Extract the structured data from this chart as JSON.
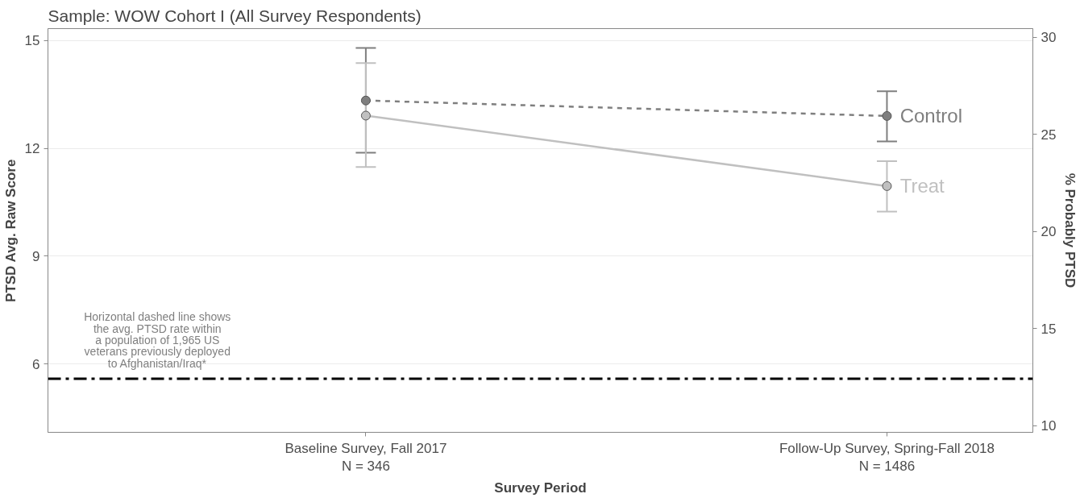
{
  "chart_data": {
    "type": "line",
    "title": "Sample: WOW Cohort I (All Survey Respondents)",
    "xlabel": "Survey Period",
    "ylabel": "PTSD Avg. Raw Score",
    "y2label": "% Probably PTSD",
    "categories": [
      "Baseline Survey, Fall 2017\nN = 346",
      "Follow-Up Survey, Spring-Fall 2018\nN = 1486"
    ],
    "series": [
      {
        "name": "Control",
        "color": "#7f7f7f",
        "values": [
          13.33,
          12.9
        ],
        "errors": [
          [
            11.88,
            14.79
          ],
          [
            12.19,
            13.59
          ]
        ],
        "line_style": "dashed"
      },
      {
        "name": "Treat",
        "color": "#c0c0c0",
        "values": [
          12.91,
          10.95
        ],
        "errors": [
          [
            11.48,
            14.37
          ],
          [
            10.24,
            11.64
          ]
        ],
        "line_style": "solid"
      }
    ],
    "ylim": [
      4.1,
      15.33
    ],
    "yticks": [
      6,
      9,
      12,
      15
    ],
    "y2lim": [
      9.65,
      30.44
    ],
    "y2ticks": [
      10,
      15,
      20,
      25,
      30
    ],
    "ref_lines": [
      {
        "axis": "y",
        "value": 5.59,
        "label": "Horizontal dashed line shows\nthe avg. PTSD rate within\na population of 1,965 US\nveterans previously deployed\nto Afghanistan/Iraq*",
        "color": "#000000",
        "line_style": "dashdot"
      }
    ],
    "grid": "y",
    "marker": "circle"
  }
}
